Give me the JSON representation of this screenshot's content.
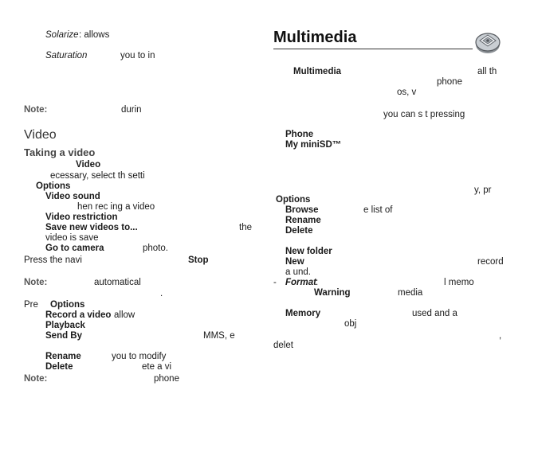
{
  "left": {
    "solarize_label": "Solarize",
    "solarize_text": ": allows",
    "saturation_label": "Saturation",
    "saturation_text": "you  to  in",
    "note1_label": "Note:",
    "note1_text": "durin",
    "video_heading": "Video",
    "taking_heading": "Taking a video",
    "tv_video": "Video",
    "tv_line2": "ecessary,  select  th                    setti",
    "options1": "Options",
    "video_sound": "Video  sound",
    "video_sound_desc": "hen rec     ing a video",
    "video_restriction": "Video restriction",
    "save_new_videos": "Save new videos to...",
    "save_new_videos_tail": "the",
    "video_is_save": "video is save",
    "go_to_camera": "Go to camera",
    "go_to_camera_desc": "photo.",
    "press_navi": "Press the navi",
    "stop": "Stop",
    "note2_label": "Note:",
    "note2_text": "automatical",
    "note2_dot": ".",
    "pre": "Pre",
    "options2": "Options",
    "record_video": "Record a video",
    "record_video_desc": "allow",
    "playback": "Playback",
    "send_by": "Send By",
    "send_by_tail": "MMS, e",
    "rename": "Rename",
    "rename_desc": "you to modify",
    "delete": "Delete",
    "delete_desc": "ete a vi",
    "note3_label": "Note:",
    "note3_text": "phone"
  },
  "right": {
    "multimedia_heading": "Multimedia",
    "mm_intro_bold": "Multimedia",
    "mm_intro_tail": "all  th",
    "phone1": "phone",
    "os_v": "os,      v",
    "you_can": "you  can  s      t  pressing",
    "phone_item": "Phone",
    "my_minisd": "My  miniSD™",
    "y_pr": "y,  pr",
    "options3": "Options",
    "browse": "Browse",
    "browse_desc": "e list of",
    "rename": "Rename",
    "delete": "Delete",
    "new_folder": "New folder",
    "new": "New",
    "record": "record",
    "a_und": "a     und.",
    "format_dash": "-",
    "format": "Format",
    "format_colon": ":",
    "l_memo": "l memo",
    "warning": "Warning",
    "media": "media",
    "memory": "Memory",
    "used_and_a": "used  and  a",
    "obj": "obj",
    "comma": ",",
    "delet": "delet"
  },
  "icon": "multimedia-chip-icon"
}
